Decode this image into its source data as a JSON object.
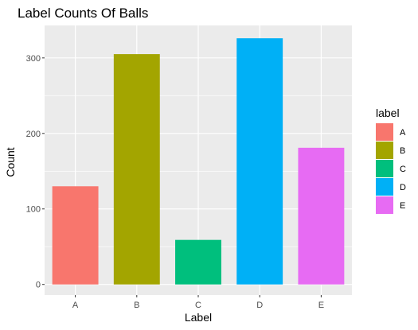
{
  "chart_data": {
    "type": "bar",
    "title": "Label Counts Of Balls",
    "xlabel": "Label",
    "ylabel": "Count",
    "categories": [
      "A",
      "B",
      "C",
      "D",
      "E"
    ],
    "values": [
      130,
      305,
      59,
      326,
      181
    ],
    "colors": [
      "#F8766D",
      "#A3A500",
      "#00BF7D",
      "#00B0F6",
      "#E76BF3"
    ],
    "ylim": [
      -14,
      343
    ],
    "yticks": [
      0,
      100,
      200,
      300
    ],
    "grid": true,
    "panel_background": "#EBEBEB",
    "legend": {
      "title": "label",
      "position": "right",
      "entries": [
        "A",
        "B",
        "C",
        "D",
        "E"
      ]
    }
  }
}
